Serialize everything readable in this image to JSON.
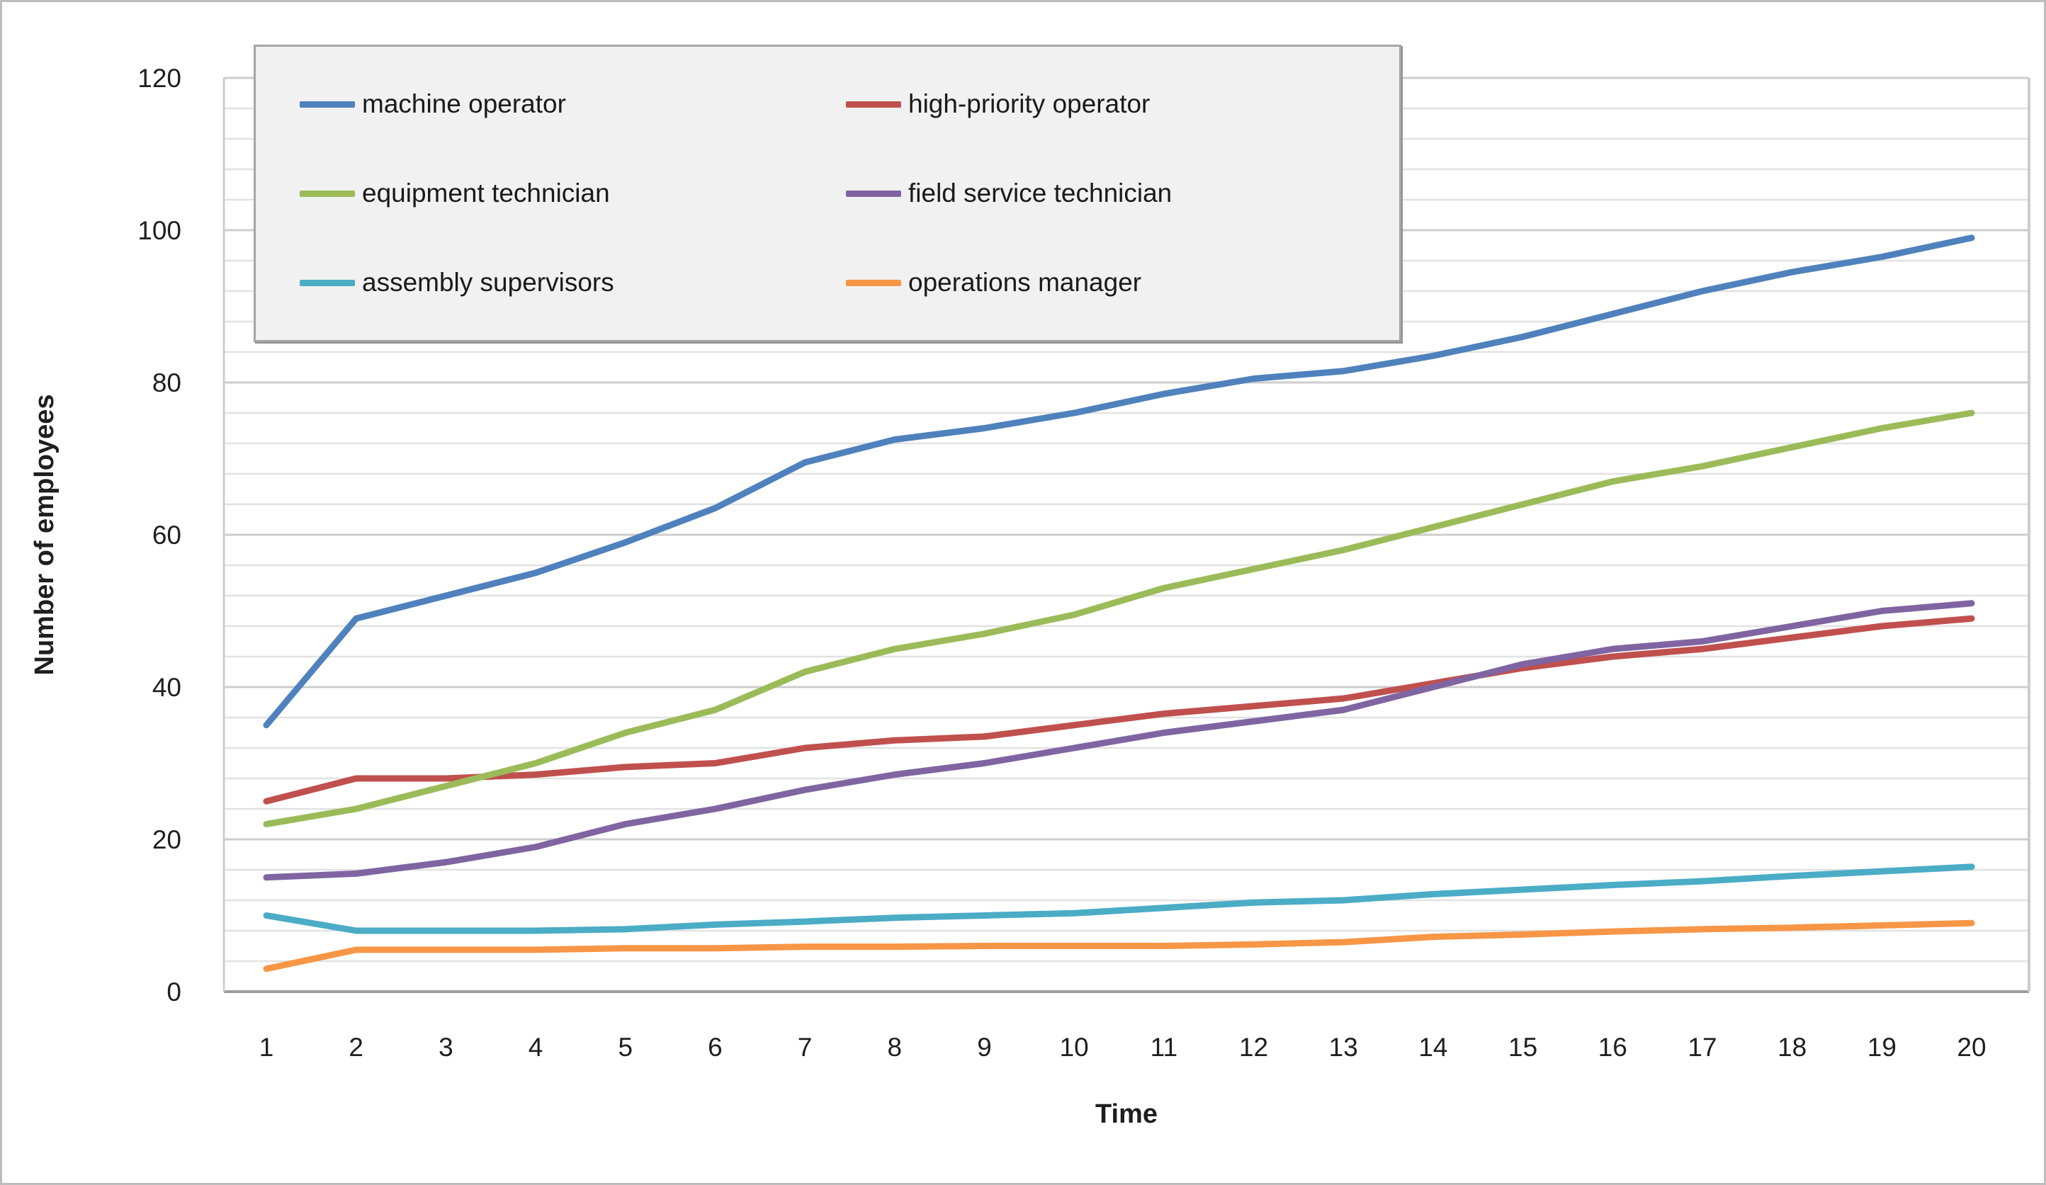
{
  "chart_data": {
    "type": "line",
    "title": "",
    "xlabel": "Time",
    "ylabel": "Number of employees",
    "x": [
      1,
      2,
      3,
      4,
      5,
      6,
      7,
      8,
      9,
      10,
      11,
      12,
      13,
      14,
      15,
      16,
      17,
      18,
      19,
      20
    ],
    "x_tick_labels": [
      "1",
      "2",
      "3",
      "4",
      "5",
      "6",
      "7",
      "8",
      "9",
      "10",
      "11",
      "12",
      "13",
      "14",
      "15",
      "16",
      "17",
      "18",
      "19",
      "20"
    ],
    "y_tick_labels": [
      "0",
      "20",
      "40",
      "60",
      "80",
      "100",
      "120"
    ],
    "ylim": [
      0,
      120
    ],
    "y_major_step": 20,
    "y_minor_step": 4,
    "grid": "on",
    "legend_position": "top-left-inside",
    "legend_columns": 2,
    "series": [
      {
        "name": "machine operator",
        "color": "#4F81BD",
        "values": [
          35,
          49,
          52,
          55,
          59,
          63.5,
          69.5,
          72.5,
          74,
          76,
          78.5,
          80.5,
          81.5,
          83.5,
          86,
          89,
          92,
          94.5,
          96.5,
          99
        ]
      },
      {
        "name": "high-priority operator",
        "color": "#C0504D",
        "values": [
          25,
          28,
          28,
          28.5,
          29.5,
          30,
          32,
          33,
          33.5,
          35,
          36.5,
          37.5,
          38.5,
          40.5,
          42.5,
          44,
          45,
          46.5,
          48,
          49
        ]
      },
      {
        "name": "equipment technician",
        "color": "#9BBB59",
        "values": [
          22,
          24,
          27,
          30,
          34,
          37,
          42,
          45,
          47,
          49.5,
          53,
          55.5,
          58,
          61,
          64,
          67,
          69,
          71.5,
          74,
          76
        ]
      },
      {
        "name": "field service technician",
        "color": "#8064A2",
        "values": [
          15,
          15.5,
          17,
          19,
          22,
          24,
          26.5,
          28.5,
          30,
          32,
          34,
          35.5,
          37,
          40,
          43,
          45,
          46,
          48,
          50,
          51
        ]
      },
      {
        "name": "assembly supervisors",
        "color": "#4BACC6",
        "values": [
          10,
          8,
          8,
          8,
          8.2,
          8.8,
          9.2,
          9.7,
          10,
          10.3,
          11,
          11.7,
          12,
          12.8,
          13.4,
          14,
          14.5,
          15.2,
          15.8,
          16.4
        ]
      },
      {
        "name": "operations manager",
        "color": "#F79646",
        "values": [
          3,
          5.5,
          5.5,
          5.5,
          5.7,
          5.7,
          5.9,
          5.9,
          6,
          6,
          6,
          6.2,
          6.5,
          7.2,
          7.5,
          7.9,
          8.2,
          8.4,
          8.7,
          9
        ]
      }
    ],
    "legend_order": [
      "machine operator",
      "high-priority operator",
      "equipment technician",
      "field service technician",
      "assembly supervisors",
      "operations manager"
    ],
    "colors": {
      "gridline_minor": "#e2e2e2",
      "gridline_major": "#cdcdcd",
      "axis_line": "#9d9d9d",
      "tick_text": "#1f1f1f",
      "legend_fill": "#f1f1f1",
      "legend_border": "#a6a6a6",
      "background": "#ffffff"
    }
  }
}
